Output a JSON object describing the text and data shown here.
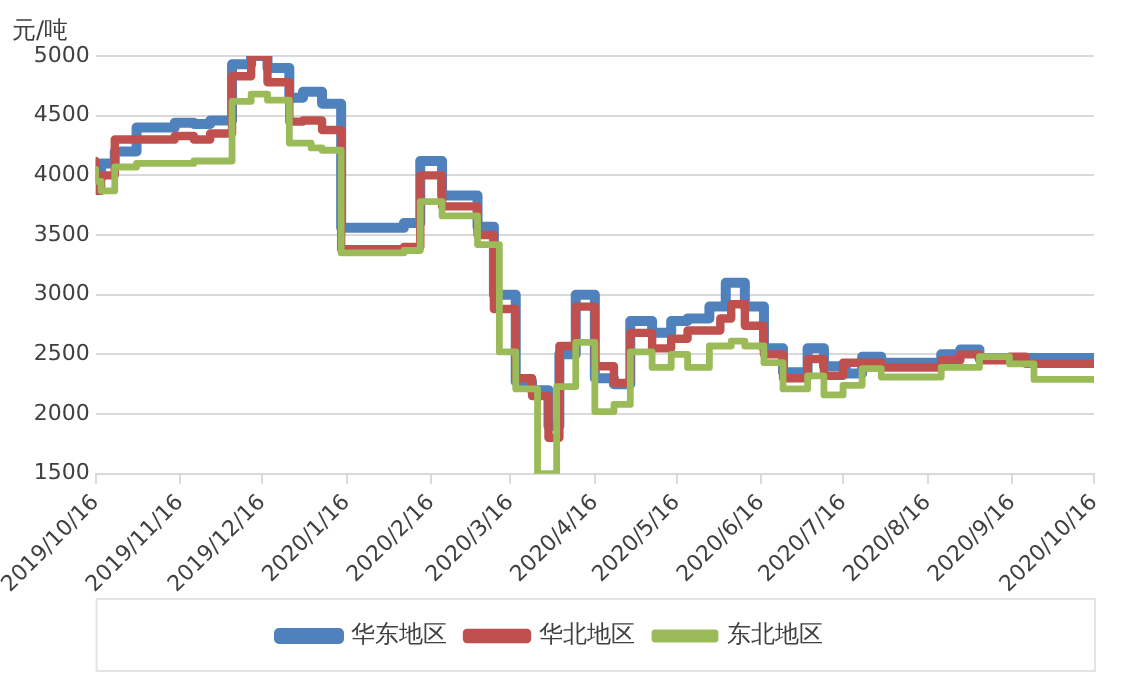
{
  "chart_data": {
    "type": "step",
    "ylabel": "元/吨",
    "xlim": [
      "2019-10-16",
      "2020-10-16"
    ],
    "xticks": [
      {
        "value": "2019-10-16",
        "label": "2019/10/16"
      },
      {
        "value": "2019-11-16",
        "label": "2019/11/16"
      },
      {
        "value": "2019-12-16",
        "label": "2019/12/16"
      },
      {
        "value": "2020-01-16",
        "label": "2020/1/16"
      },
      {
        "value": "2020-02-16",
        "label": "2020/2/16"
      },
      {
        "value": "2020-03-16",
        "label": "2020/3/16"
      },
      {
        "value": "2020-04-16",
        "label": "2020/4/16"
      },
      {
        "value": "2020-05-16",
        "label": "2020/5/16"
      },
      {
        "value": "2020-06-16",
        "label": "2020/6/16"
      },
      {
        "value": "2020-07-16",
        "label": "2020/7/16"
      },
      {
        "value": "2020-08-16",
        "label": "2020/8/16"
      },
      {
        "value": "2020-09-16",
        "label": "2020/9/16"
      },
      {
        "value": "2020-10-16",
        "label": "2020/10/16"
      }
    ],
    "ylim": [
      1500,
      5000
    ],
    "yticks": [
      1500,
      2000,
      2500,
      3000,
      3500,
      4000,
      4500,
      5000
    ],
    "grid": "y",
    "legend": "bottom",
    "marker": "none",
    "line_style": "solid",
    "series": [
      {
        "name": "华东地区",
        "color": "#4f81bd",
        "x": [
          "2019-10-16",
          "2019-10-18",
          "2019-10-23",
          "2019-10-31",
          "2019-11-14",
          "2019-11-21",
          "2019-11-27",
          "2019-12-05",
          "2019-12-12",
          "2019-12-18",
          "2019-12-26",
          "2019-12-31",
          "2020-01-07",
          "2020-01-14",
          "2020-02-06",
          "2020-02-12",
          "2020-02-20",
          "2020-03-04",
          "2020-03-10",
          "2020-03-18",
          "2020-03-24",
          "2020-03-30",
          "2020-04-03",
          "2020-04-09",
          "2020-04-16",
          "2020-04-23",
          "2020-04-29",
          "2020-05-07",
          "2020-05-14",
          "2020-05-20",
          "2020-05-28",
          "2020-06-03",
          "2020-06-10",
          "2020-06-17",
          "2020-06-24",
          "2020-07-03",
          "2020-07-09",
          "2020-07-17",
          "2020-07-23",
          "2020-07-30",
          "2020-08-21",
          "2020-08-28",
          "2020-09-04",
          "2020-10-06",
          "2020-10-16"
        ],
        "values": [
          4100,
          3980,
          4100,
          4200,
          4400,
          4440,
          4430,
          4460,
          4930,
          5000,
          4900,
          4650,
          4700,
          4600,
          3560,
          3600,
          4120,
          3830,
          3570,
          3000,
          2270,
          2200,
          1900,
          2500,
          3000,
          2300,
          2250,
          2780,
          2680,
          2780,
          2800,
          2900,
          3100,
          2900,
          2550,
          2350,
          2550,
          2400,
          2340,
          2480,
          2430,
          2500,
          2540,
          2470,
          2470
        ]
      },
      {
        "name": "华北地区",
        "color": "#c0504d",
        "x": [
          "2019-10-16",
          "2019-10-18",
          "2019-10-23",
          "2019-11-14",
          "2019-11-21",
          "2019-11-27",
          "2019-12-05",
          "2019-12-12",
          "2019-12-18",
          "2019-12-26",
          "2019-12-31",
          "2020-01-07",
          "2020-01-14",
          "2020-02-06",
          "2020-02-12",
          "2020-02-20",
          "2020-03-04",
          "2020-03-10",
          "2020-03-18",
          "2020-03-24",
          "2020-03-30",
          "2020-04-03",
          "2020-04-09",
          "2020-04-16",
          "2020-04-23",
          "2020-04-29",
          "2020-05-07",
          "2020-05-14",
          "2020-05-20",
          "2020-06-01",
          "2020-06-05",
          "2020-06-10",
          "2020-06-17",
          "2020-06-24",
          "2020-07-03",
          "2020-07-09",
          "2020-07-16",
          "2020-07-30",
          "2020-08-21",
          "2020-08-28",
          "2020-09-04",
          "2020-09-15",
          "2020-09-21",
          "2020-10-14",
          "2020-10-16"
        ],
        "values": [
          4120,
          3870,
          4000,
          4300,
          4330,
          4300,
          4350,
          4830,
          5000,
          4780,
          4450,
          4460,
          4380,
          3380,
          3400,
          4000,
          3740,
          3500,
          2880,
          2300,
          2150,
          1800,
          2570,
          2900,
          2400,
          2260,
          2680,
          2550,
          2630,
          2700,
          2800,
          2920,
          2740,
          2500,
          2300,
          2460,
          2320,
          2430,
          2390,
          2450,
          2500,
          2450,
          2480,
          2420,
          2420
        ]
      },
      {
        "name": "东北地区",
        "color": "#9bbb59",
        "x": [
          "2019-10-16",
          "2019-10-18",
          "2019-10-23",
          "2019-10-31",
          "2019-11-21",
          "2019-12-05",
          "2019-12-12",
          "2019-12-18",
          "2019-12-26",
          "2020-01-03",
          "2020-01-07",
          "2020-01-14",
          "2020-02-06",
          "2020-02-12",
          "2020-02-20",
          "2020-03-04",
          "2020-03-12",
          "2020-03-18",
          "2020-03-26",
          "2020-04-02",
          "2020-04-09",
          "2020-04-16",
          "2020-04-23",
          "2020-04-29",
          "2020-05-07",
          "2020-05-14",
          "2020-05-20",
          "2020-05-28",
          "2020-06-05",
          "2020-06-10",
          "2020-06-17",
          "2020-06-24",
          "2020-07-03",
          "2020-07-09",
          "2020-07-16",
          "2020-07-23",
          "2020-07-30",
          "2020-08-21",
          "2020-09-04",
          "2020-09-15",
          "2020-09-24",
          "2020-10-14",
          "2020-10-16"
        ],
        "values": [
          4050,
          3950,
          3870,
          4070,
          4100,
          4120,
          4620,
          4680,
          4630,
          4270,
          4230,
          4210,
          3350,
          3370,
          3780,
          3660,
          3420,
          2520,
          2210,
          1500,
          2230,
          2600,
          2020,
          2080,
          2520,
          2390,
          2500,
          2390,
          2570,
          2610,
          2570,
          2430,
          2210,
          2320,
          2160,
          2240,
          2380,
          2310,
          2390,
          2480,
          2420,
          2290,
          2290
        ]
      }
    ]
  }
}
